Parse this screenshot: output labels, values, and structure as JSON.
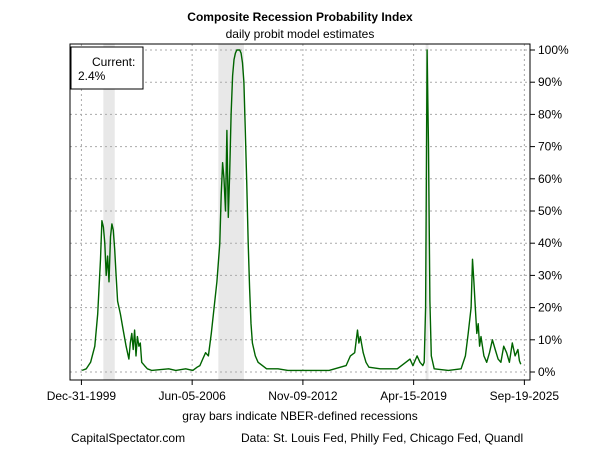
{
  "chart_data": {
    "type": "line",
    "title": "Composite Recession Probability Index",
    "subtitle": "daily probit model estimates",
    "xlabel": "gray bars indicate NBER-defined recessions",
    "ylabel": "",
    "x_tick_labels": [
      "Dec-31-1999",
      "Jun-05-2006",
      "Nov-09-2012",
      "Apr-15-2019",
      "Sep-19-2025"
    ],
    "y_tick_labels": [
      "0%",
      "10%",
      "20%",
      "30%",
      "40%",
      "50%",
      "60%",
      "70%",
      "80%",
      "90%",
      "100%"
    ],
    "ylim": [
      0,
      100
    ],
    "xlim": [
      "1999-04",
      "2026-04"
    ],
    "grid": true,
    "line_color": "#006400",
    "recession_bar_color": "#e8e8e8",
    "recessions": [
      [
        "2001-03",
        "2001-11"
      ],
      [
        "2007-12",
        "2009-06"
      ],
      [
        "2020-02",
        "2020-04"
      ]
    ],
    "annotation": {
      "line1": "Current:",
      "line2": "2.4%"
    },
    "series": [
      {
        "values": [
          [
            "1999-12",
            0.5
          ],
          [
            "2000-03",
            1
          ],
          [
            "2000-06",
            3
          ],
          [
            "2000-09",
            8
          ],
          [
            "2000-11",
            18
          ],
          [
            "2001-01",
            35
          ],
          [
            "2001-02",
            47
          ],
          [
            "2001-03",
            45
          ],
          [
            "2001-04",
            40
          ],
          [
            "2001-05",
            30
          ],
          [
            "2001-06",
            36
          ],
          [
            "2001-07",
            28
          ],
          [
            "2001-08",
            42
          ],
          [
            "2001-09",
            46
          ],
          [
            "2001-10",
            44
          ],
          [
            "2001-11",
            38
          ],
          [
            "2001-12",
            30
          ],
          [
            "2002-01",
            22
          ],
          [
            "2002-03",
            18
          ],
          [
            "2002-05",
            13
          ],
          [
            "2002-07",
            8
          ],
          [
            "2002-09",
            4
          ],
          [
            "2002-10",
            9
          ],
          [
            "2002-11",
            12
          ],
          [
            "2002-12",
            7
          ],
          [
            "2003-01",
            13
          ],
          [
            "2003-02",
            5
          ],
          [
            "2003-03",
            11
          ],
          [
            "2003-04",
            8
          ],
          [
            "2003-05",
            9
          ],
          [
            "2003-06",
            3
          ],
          [
            "2003-08",
            2
          ],
          [
            "2003-10",
            1
          ],
          [
            "2004-01",
            0.5
          ],
          [
            "2005-01",
            1
          ],
          [
            "2005-06",
            0.5
          ],
          [
            "2006-01",
            1
          ],
          [
            "2006-06",
            0.5
          ],
          [
            "2006-09",
            1.5
          ],
          [
            "2006-11",
            2
          ],
          [
            "2007-01",
            4
          ],
          [
            "2007-03",
            6
          ],
          [
            "2007-05",
            5
          ],
          [
            "2007-07",
            12
          ],
          [
            "2007-09",
            20
          ],
          [
            "2007-11",
            28
          ],
          [
            "2008-01",
            40
          ],
          [
            "2008-02",
            55
          ],
          [
            "2008-03",
            65
          ],
          [
            "2008-04",
            60
          ],
          [
            "2008-05",
            50
          ],
          [
            "2008-06",
            75
          ],
          [
            "2008-07",
            48
          ],
          [
            "2008-08",
            62
          ],
          [
            "2008-09",
            80
          ],
          [
            "2008-10",
            92
          ],
          [
            "2008-11",
            97
          ],
          [
            "2008-12",
            99
          ],
          [
            "2009-01",
            100
          ],
          [
            "2009-02",
            100
          ],
          [
            "2009-03",
            100
          ],
          [
            "2009-04",
            99
          ],
          [
            "2009-05",
            96
          ],
          [
            "2009-06",
            90
          ],
          [
            "2009-07",
            75
          ],
          [
            "2009-08",
            58
          ],
          [
            "2009-09",
            40
          ],
          [
            "2009-10",
            26
          ],
          [
            "2009-11",
            15
          ],
          [
            "2009-12",
            9
          ],
          [
            "2010-02",
            5
          ],
          [
            "2010-04",
            3
          ],
          [
            "2010-07",
            2
          ],
          [
            "2010-10",
            1
          ],
          [
            "2011-06",
            1
          ],
          [
            "2012-01",
            0.5
          ],
          [
            "2013-01",
            0.5
          ],
          [
            "2014-06",
            0.5
          ],
          [
            "2015-06",
            2
          ],
          [
            "2015-09",
            5
          ],
          [
            "2015-12",
            6
          ],
          [
            "2016-02",
            13
          ],
          [
            "2016-03",
            9
          ],
          [
            "2016-04",
            11
          ],
          [
            "2016-06",
            6
          ],
          [
            "2016-08",
            3
          ],
          [
            "2016-10",
            1.5
          ],
          [
            "2017-06",
            1
          ],
          [
            "2018-06",
            1
          ],
          [
            "2018-12",
            3
          ],
          [
            "2019-03",
            4
          ],
          [
            "2019-05",
            2
          ],
          [
            "2019-08",
            5
          ],
          [
            "2019-10",
            3
          ],
          [
            "2019-12",
            2
          ],
          [
            "2020-01",
            3
          ],
          [
            "2020-02",
            20
          ],
          [
            "2020-03",
            100
          ],
          [
            "2020-04",
            70
          ],
          [
            "2020-05",
            22
          ],
          [
            "2020-06",
            5
          ],
          [
            "2020-08",
            1
          ],
          [
            "2021-06",
            0.5
          ],
          [
            "2022-03",
            1
          ],
          [
            "2022-06",
            5
          ],
          [
            "2022-08",
            12
          ],
          [
            "2022-10",
            20
          ],
          [
            "2022-11",
            35
          ],
          [
            "2022-12",
            28
          ],
          [
            "2023-01",
            20
          ],
          [
            "2023-02",
            12
          ],
          [
            "2023-03",
            15
          ],
          [
            "2023-04",
            8
          ],
          [
            "2023-05",
            11
          ],
          [
            "2023-07",
            5
          ],
          [
            "2023-09",
            3
          ],
          [
            "2023-11",
            6
          ],
          [
            "2024-01",
            10
          ],
          [
            "2024-03",
            7
          ],
          [
            "2024-05",
            4
          ],
          [
            "2024-07",
            3
          ],
          [
            "2024-09",
            8
          ],
          [
            "2024-11",
            6
          ],
          [
            "2025-01",
            3
          ],
          [
            "2025-03",
            9
          ],
          [
            "2025-05",
            5
          ],
          [
            "2025-07",
            7
          ],
          [
            "2025-08",
            3.5
          ],
          [
            "2025-09",
            2.4
          ]
        ]
      }
    ]
  },
  "footer": {
    "source_site": "CapitalSpectator.com",
    "data_sources": "Data: St. Louis Fed, Philly Fed, Chicago Fed, Quandl"
  }
}
